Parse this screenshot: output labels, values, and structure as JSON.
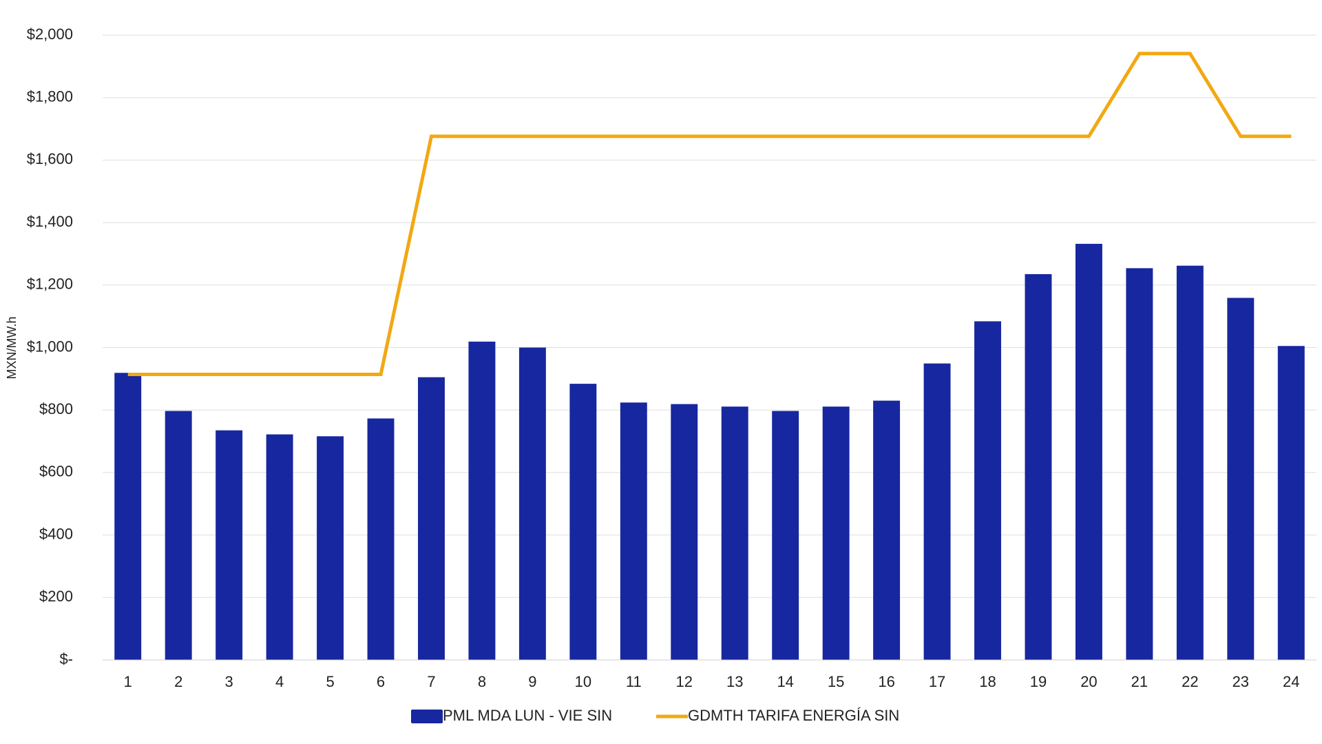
{
  "chart_data": {
    "type": "bar",
    "y_label": "MXN/MW.h",
    "categories": [
      "1",
      "2",
      "3",
      "4",
      "5",
      "6",
      "7",
      "8",
      "9",
      "10",
      "11",
      "12",
      "13",
      "14",
      "15",
      "16",
      "17",
      "18",
      "19",
      "20",
      "21",
      "22",
      "23",
      "24"
    ],
    "series": [
      {
        "name": "PML MDA LUN - VIE SIN",
        "color": "#1727a0",
        "type": "bar",
        "values": [
          919,
          797,
          735,
          722,
          716,
          773,
          905,
          1019,
          1000,
          884,
          824,
          819,
          811,
          797,
          811,
          830,
          949,
          1084,
          1235,
          1332,
          1254,
          1262,
          1159,
          1005
        ]
      },
      {
        "name": "GDMTH TARIFA ENERGÍA SIN",
        "color": "#f2a813",
        "type": "line",
        "values": [
          914,
          914,
          914,
          914,
          914,
          914,
          1676,
          1676,
          1676,
          1676,
          1676,
          1676,
          1676,
          1676,
          1676,
          1676,
          1676,
          1676,
          1676,
          1676,
          1941,
          1941,
          1676,
          1676
        ]
      }
    ],
    "ylim": [
      0,
      2000
    ],
    "yticks": [
      {
        "value": 0,
        "label": "$-"
      },
      {
        "value": 200,
        "label": "$200"
      },
      {
        "value": 400,
        "label": "$400"
      },
      {
        "value": 600,
        "label": "$600"
      },
      {
        "value": 800,
        "label": "$800"
      },
      {
        "value": 1000,
        "label": "$1,000"
      },
      {
        "value": 1200,
        "label": "$1,200"
      },
      {
        "value": 1400,
        "label": "$1,400"
      },
      {
        "value": 1600,
        "label": "$1,600"
      },
      {
        "value": 1800,
        "label": "$1,800"
      },
      {
        "value": 2000,
        "label": "$2,000"
      }
    ],
    "grid": true,
    "legend": "bottom"
  }
}
